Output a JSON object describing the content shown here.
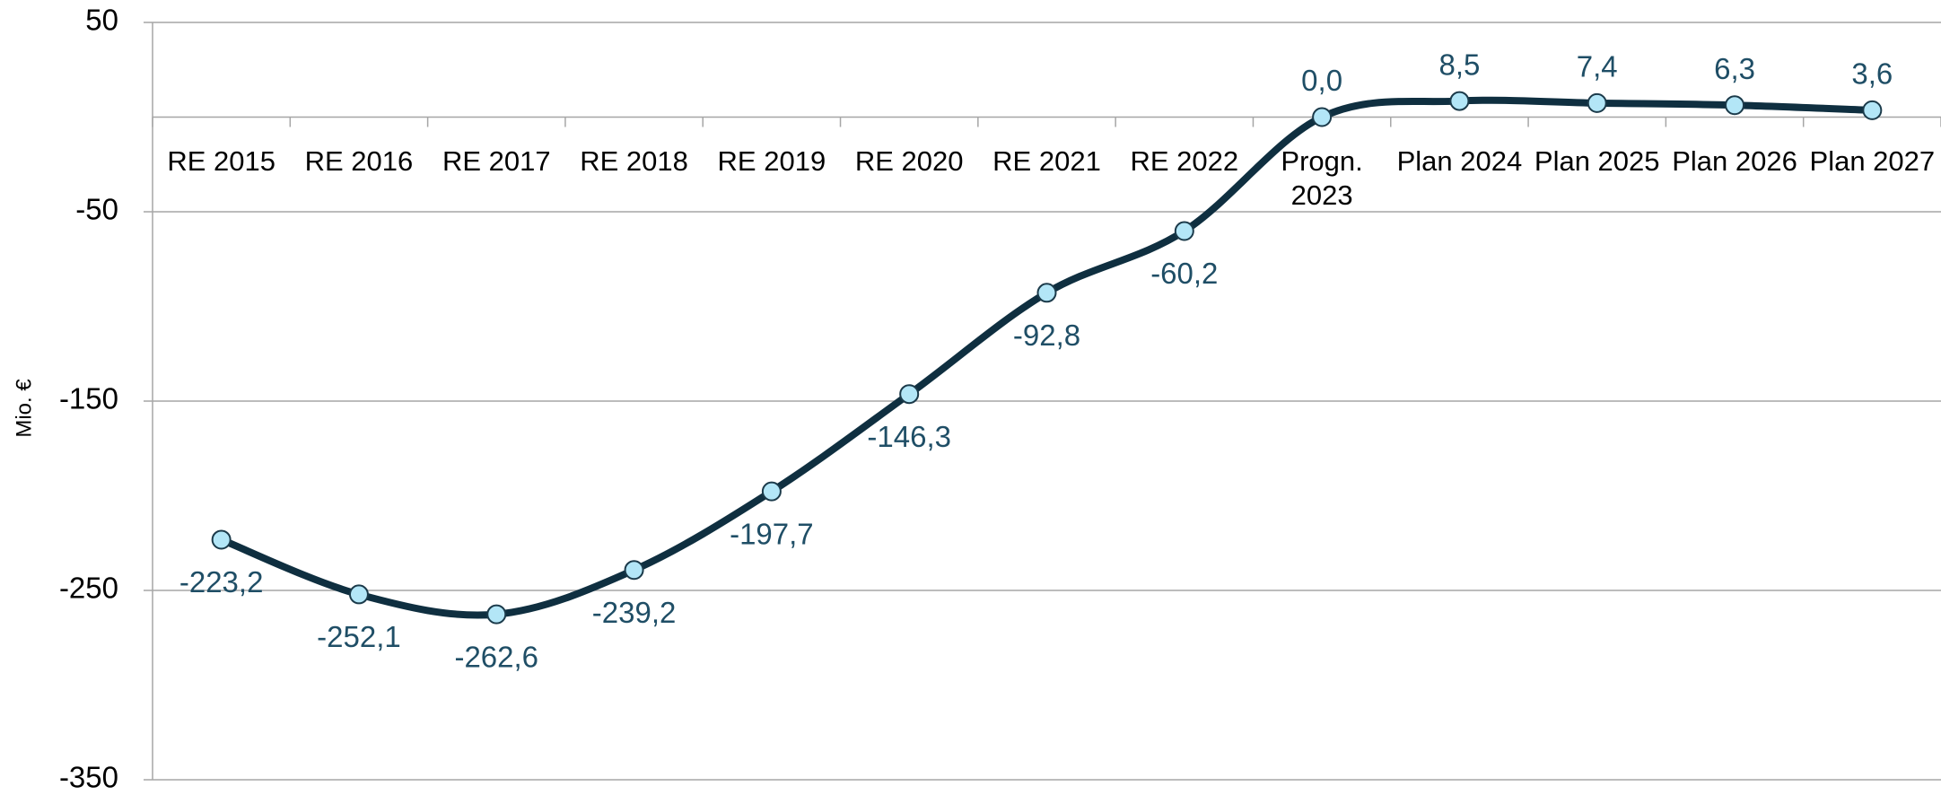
{
  "chart_data": {
    "type": "line",
    "y_label": "Mio. €",
    "categories": [
      "RE 2015",
      "RE 2016",
      "RE 2017",
      "RE 2018",
      "RE 2019",
      "RE 2020",
      "RE 2021",
      "RE 2022",
      "Progn. 2023",
      "Plan 2024",
      "Plan 2025",
      "Plan 2026",
      "Plan 2027"
    ],
    "series": [
      {
        "name": "Mio. €",
        "color": "#0f2f40",
        "marker_color": "#b3e6f7",
        "values": [
          -223.2,
          -252.1,
          -262.6,
          -239.2,
          -197.7,
          -146.3,
          -92.8,
          -60.2,
          0.0,
          8.5,
          7.4,
          6.3,
          3.6
        ],
        "value_labels": [
          "-223,2",
          "-252,1",
          "-262,6",
          "-239,2",
          "-197,7",
          "-146,3",
          "-92,8",
          "-60,2",
          "0,0",
          "8,5",
          "7,4",
          "6,3",
          "3,6"
        ]
      }
    ],
    "ylim": [
      -350,
      50
    ],
    "yticks": [
      -350,
      -250,
      -150,
      -50,
      50
    ],
    "grid": true,
    "smooth": true
  }
}
